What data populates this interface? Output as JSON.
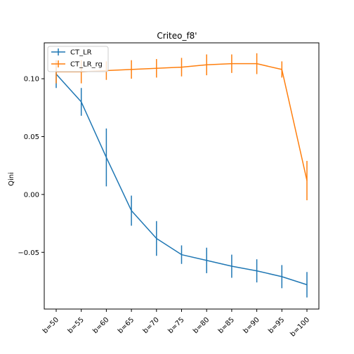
{
  "chart_data": {
    "type": "line",
    "title": "Criteo_f8'",
    "xlabel": "",
    "ylabel": "Qini",
    "categories": [
      "b=50",
      "b=55",
      "b=60",
      "b=65",
      "b=70",
      "b=75",
      "b=80",
      "b=85",
      "b=90",
      "b=95",
      "b=100"
    ],
    "yticks": [
      -0.05,
      0.0,
      0.05,
      0.1
    ],
    "ytick_labels": [
      "−0.05",
      "0.00",
      "0.05",
      "0.10"
    ],
    "ylim": [
      -0.099,
      0.131
    ],
    "grid": false,
    "legend": "top-left",
    "series": [
      {
        "name": "CT_LR",
        "color": "#1f77b4",
        "values": [
          0.104,
          0.08,
          0.032,
          -0.014,
          -0.038,
          -0.052,
          -0.057,
          -0.062,
          -0.066,
          -0.071,
          -0.078
        ],
        "errors": [
          0.012,
          0.012,
          0.025,
          0.013,
          0.015,
          0.008,
          0.011,
          0.01,
          0.01,
          0.01,
          0.011
        ]
      },
      {
        "name": "CT_LR_rg",
        "color": "#ff7f0e",
        "values": [
          0.106,
          0.106,
          0.107,
          0.108,
          0.109,
          0.11,
          0.112,
          0.113,
          0.113,
          0.108,
          0.012
        ],
        "errors": [
          0.01,
          0.01,
          0.008,
          0.008,
          0.008,
          0.008,
          0.009,
          0.008,
          0.009,
          0.007,
          0.017
        ]
      }
    ]
  }
}
